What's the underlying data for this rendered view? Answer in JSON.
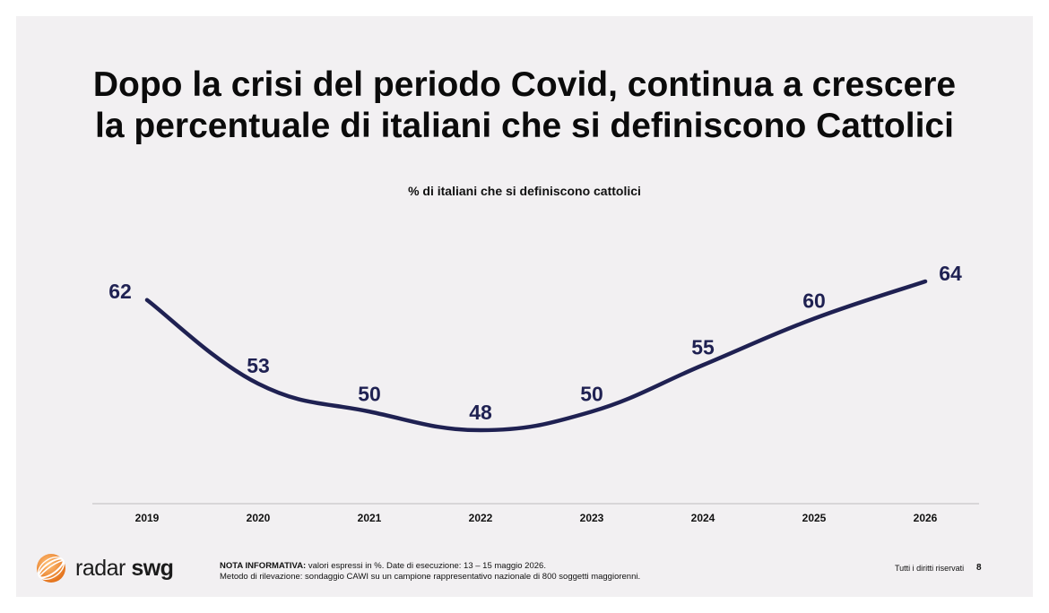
{
  "title": {
    "line1": "Dopo la crisi del periodo Covid, continua a crescere",
    "line2": "la percentuale di italiani che si definiscono Cattolici"
  },
  "chart_data": {
    "type": "line",
    "title": "% di italiani che si definiscono cattolici",
    "categories": [
      "2019",
      "2020",
      "2021",
      "2022",
      "2023",
      "2024",
      "2025",
      "2026"
    ],
    "series": [
      {
        "values": [
          62,
          53,
          50,
          48,
          50,
          55,
          60,
          64
        ]
      }
    ],
    "xlabel": "",
    "ylabel": "",
    "grid": false,
    "line_color": "#1f2152",
    "smooth": true
  },
  "footer": {
    "note_label": "NOTA INFORMATIVA:",
    "note_text": " valori espressi in %. Date di esecuzione: 13 – 15 maggio 2026.",
    "method_text": "Metodo di rilevazione: sondaggio CAWI su un campione rappresentativo nazionale di 800 soggetti maggiorenni.",
    "rights": "Tutti i diritti riservati",
    "page_number": "8"
  },
  "logo": {
    "word1": "radar",
    "word2": "swg",
    "icon": "globe-icon",
    "icon_color": "#f0882a"
  }
}
